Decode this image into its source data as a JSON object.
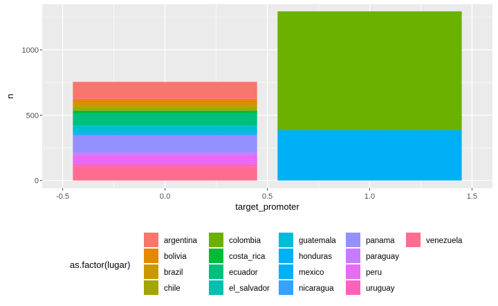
{
  "chart_data": {
    "type": "bar",
    "stacked": true,
    "xlabel": "target_promoter",
    "ylabel": "n",
    "xlim": [
      -0.6,
      1.6
    ],
    "ylim": [
      -60,
      1350
    ],
    "x_ticks": [
      {
        "value": -0.5,
        "label": "-0.5"
      },
      {
        "value": 0.0,
        "label": "0.0"
      },
      {
        "value": 0.5,
        "label": "0.5"
      },
      {
        "value": 1.0,
        "label": "1.0"
      },
      {
        "value": 1.5,
        "label": "1.5"
      }
    ],
    "y_ticks": [
      {
        "value": 0,
        "label": "0"
      },
      {
        "value": 500,
        "label": "500"
      },
      {
        "value": 1000,
        "label": "1000"
      }
    ],
    "bar_width": 0.9,
    "grid": true,
    "legend": {
      "title": "as.factor(lugar)",
      "placement": "bottom",
      "columns": 5
    },
    "categories": [
      0,
      1
    ],
    "series": [
      {
        "name": "argentina",
        "color": "#F8766D",
        "values": [
          130,
          0
        ]
      },
      {
        "name": "bolivia",
        "color": "#E58700",
        "values": [
          30,
          0
        ]
      },
      {
        "name": "brazil",
        "color": "#C99800",
        "values": [
          30,
          0
        ]
      },
      {
        "name": "chile",
        "color": "#A3A500",
        "values": [
          30,
          0
        ]
      },
      {
        "name": "colombia",
        "color": "#6BB100",
        "values": [
          0,
          910
        ]
      },
      {
        "name": "costa_rica",
        "color": "#00BA38",
        "values": [
          20,
          0
        ]
      },
      {
        "name": "ecuador",
        "color": "#00BF7D",
        "values": [
          90,
          0
        ]
      },
      {
        "name": "el_salvador",
        "color": "#00C0AF",
        "values": [
          10,
          0
        ]
      },
      {
        "name": "guatemala",
        "color": "#00BCD8",
        "values": [
          50,
          0
        ]
      },
      {
        "name": "honduras",
        "color": "#00B0F6",
        "values": [
          10,
          0
        ]
      },
      {
        "name": "mexico",
        "color": "#00B0F6",
        "values": [
          0,
          385
        ]
      },
      {
        "name": "nicaragua",
        "color": "#35A2FF",
        "values": [
          10,
          0
        ]
      },
      {
        "name": "panama",
        "color": "#9590FF",
        "values": [
          130,
          0
        ]
      },
      {
        "name": "paraguay",
        "color": "#C77CFF",
        "values": [
          20,
          0
        ]
      },
      {
        "name": "peru",
        "color": "#E76BF3",
        "values": [
          70,
          0
        ]
      },
      {
        "name": "uruguay",
        "color": "#FF62BC",
        "values": [
          20,
          0
        ]
      },
      {
        "name": "venezuela",
        "color": "#FF6C91",
        "values": [
          105,
          0
        ]
      }
    ]
  }
}
